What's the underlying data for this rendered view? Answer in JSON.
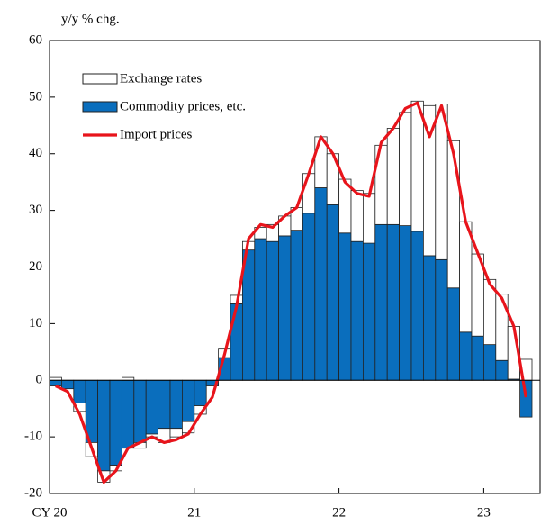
{
  "chart_data": {
    "type": "stacked-bar-line",
    "y_label": "y/y % chg.",
    "categories": [
      "CY 20",
      null,
      null,
      null,
      null,
      null,
      null,
      null,
      null,
      null,
      null,
      null,
      "21",
      null,
      null,
      null,
      null,
      null,
      null,
      null,
      null,
      null,
      null,
      null,
      "22",
      null,
      null,
      null,
      null,
      null,
      null,
      null,
      null,
      null,
      null,
      null,
      "23",
      null,
      null,
      null
    ],
    "series": [
      {
        "name": "Exchange rates",
        "color": "#ffffff",
        "kind": "bar",
        "values": [
          0.5,
          0,
          -1.5,
          -2.5,
          -2,
          -1,
          0.5,
          -1,
          -0.5,
          -2.5,
          -1.5,
          -2,
          -1.5,
          0,
          1.5,
          1.5,
          1.5,
          2,
          3,
          3.5,
          4,
          7,
          9,
          9,
          9.5,
          9,
          8.8,
          14,
          17,
          20,
          23,
          26.5,
          27.5,
          26,
          19.5,
          14.5,
          11.5,
          11.7,
          9.3,
          3.7
        ]
      },
      {
        "name": "Commodity prices, etc.",
        "color": "#0a6ebd",
        "kind": "bar",
        "values": [
          -1,
          -1.5,
          -4,
          -11,
          -16,
          -15,
          -12,
          -11,
          -9.5,
          -8.5,
          -8.5,
          -7.3,
          -4.5,
          -1,
          4,
          13.5,
          23,
          25,
          24.5,
          25.5,
          26.5,
          29.5,
          34,
          31,
          26,
          24.5,
          24.2,
          27.5,
          27.5,
          27.3,
          26.3,
          22,
          21.3,
          16.3,
          8.5,
          7.8,
          6.3,
          3.5,
          0.2,
          -6.5
        ]
      },
      {
        "name": "Import prices",
        "color": "#e8141b",
        "kind": "line",
        "values": [
          -1,
          -2,
          -6,
          -12,
          -18,
          -16,
          -12,
          -11,
          -10,
          -11,
          -10.5,
          -9.5,
          -6,
          -3,
          4.5,
          13,
          25,
          27.5,
          27,
          29,
          30.5,
          36.5,
          43,
          40,
          35,
          33,
          32.5,
          42,
          44.5,
          48,
          49,
          43,
          48.5,
          40,
          28,
          22.5,
          17,
          14.5,
          9.5,
          -3
        ]
      }
    ],
    "ylim": [
      -20,
      60
    ],
    "yticks": [
      -20,
      -10,
      0,
      10,
      20,
      30,
      40,
      50,
      60
    ]
  }
}
